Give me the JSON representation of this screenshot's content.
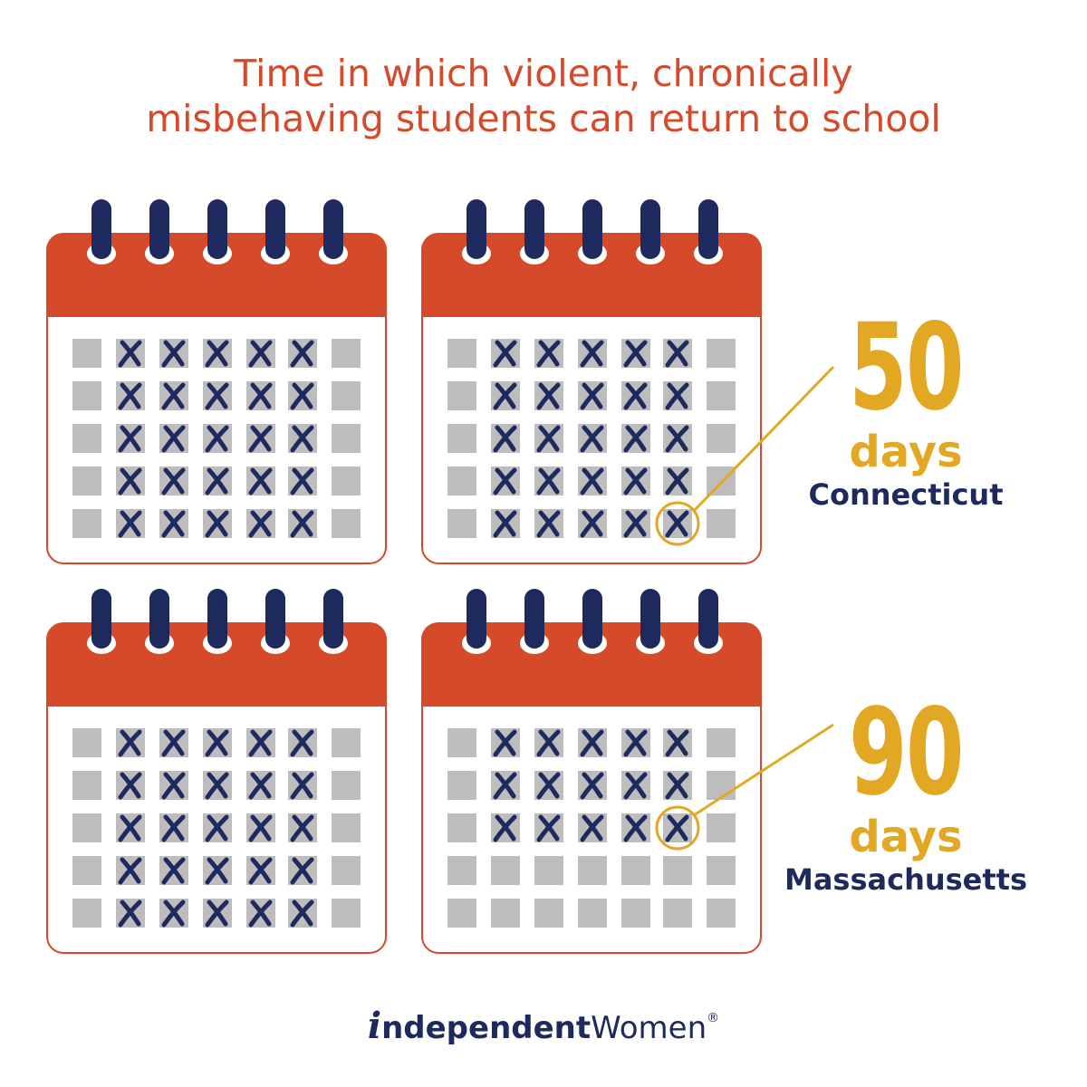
{
  "title": {
    "line1": "Time in which violent, chronically",
    "line2": "misbehaving students can return to school"
  },
  "colors": {
    "accent_red": "#D44A2B",
    "navy": "#1E2A5E",
    "gold": "#E3A823",
    "cell_gray": "#BDBDBD"
  },
  "calendars": [
    {
      "id": "top-left",
      "crossed_days": 25,
      "highlight_day": null
    },
    {
      "id": "top-right",
      "crossed_days": 25,
      "highlight_day": 25
    },
    {
      "id": "bottom-left",
      "crossed_days": 25,
      "highlight_day": null
    },
    {
      "id": "bottom-right",
      "crossed_days": 15,
      "highlight_day": 15
    }
  ],
  "stats": [
    {
      "value": "50",
      "unit": "days",
      "state": "Connecticut"
    },
    {
      "value": "90",
      "unit": "days",
      "state": "Massachusetts"
    }
  ],
  "logo": {
    "i_mark": "i",
    "bold_part": "ndependent",
    "regular_part": "Women",
    "registered": "®"
  },
  "icons": [
    "calendar-icon",
    "cross-mark-icon",
    "highlight-circle-icon"
  ]
}
